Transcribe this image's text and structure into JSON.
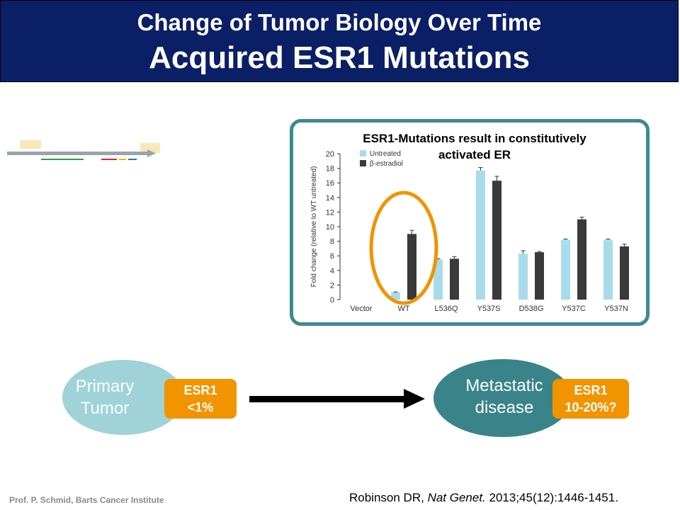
{
  "title": {
    "line1": "Change of Tumor Biology Over Time",
    "line2": "Acquired ESR1 Mutations"
  },
  "chart_title": {
    "line1": "ESR1-Mutations result in constitutively",
    "line2": "activated ER"
  },
  "chart_data": {
    "type": "bar",
    "ylabel": "Fold change (relative to WT untreated)",
    "ylim": [
      0,
      20
    ],
    "yticks": [
      0,
      2,
      4,
      6,
      8,
      10,
      12,
      14,
      16,
      18,
      20
    ],
    "categories": [
      "Vector",
      "WT",
      "L536Q",
      "Y537S",
      "D538G",
      "Y537C",
      "Y537N"
    ],
    "series": [
      {
        "name": "Untreated",
        "color": "#a9dcea",
        "values": [
          0,
          1.0,
          5.5,
          17.7,
          6.3,
          8.2,
          8.2
        ],
        "errors": [
          0,
          0.05,
          0.1,
          0.4,
          0.4,
          0.1,
          0.1
        ]
      },
      {
        "name": "β-estradiol",
        "color": "#3a3a3a",
        "values": [
          0,
          9.0,
          5.6,
          16.3,
          6.5,
          11.0,
          7.3
        ],
        "errors": [
          0,
          0.5,
          0.3,
          0.6,
          0.1,
          0.3,
          0.3
        ]
      }
    ],
    "highlight_category": "WT",
    "highlight_color": "#f29300"
  },
  "flow": {
    "primary_label": "Primary\nTumor",
    "primary_badge": "ESR1\n<1%",
    "metastatic_label": "Metastatic\ndisease",
    "metastatic_badge": "ESR1\n10-20%?"
  },
  "footer": {
    "left": "Prof. P. Schmid, Barts Cancer Institute",
    "ref_authors": "Robinson DR, ",
    "ref_journal": "Nat Genet.",
    "ref_rest": " 2013;45(12):1446-1451."
  },
  "colors": {
    "title_bg": "#0b1f66",
    "frame": "#3d8a8f",
    "primary": "#9fd3d8",
    "metastatic": "#3a8489",
    "badge": "#f29300"
  }
}
